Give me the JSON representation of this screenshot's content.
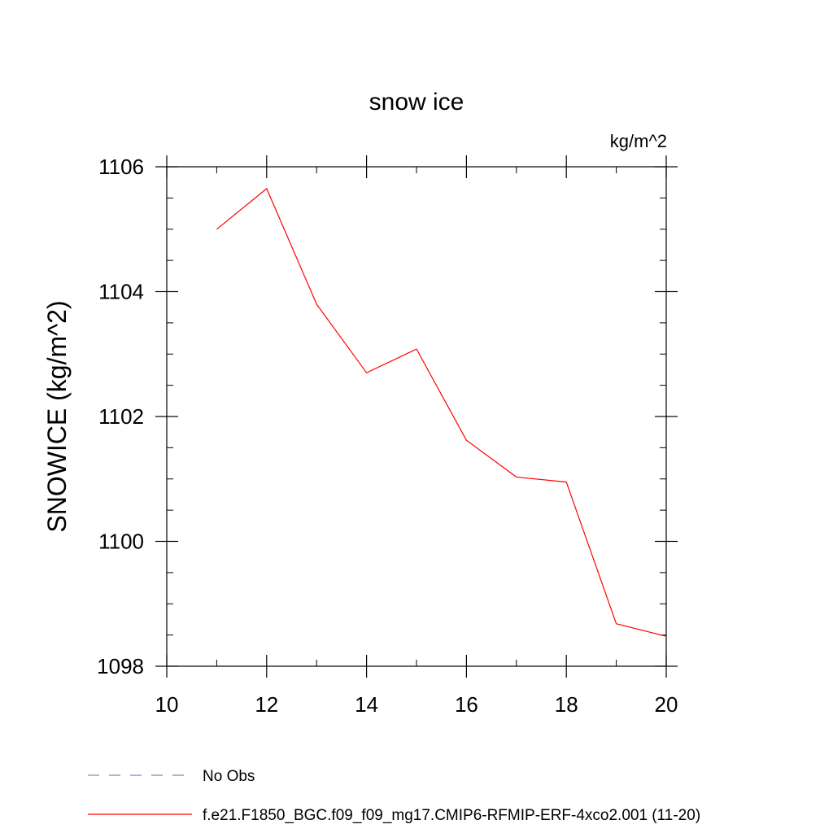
{
  "chart_data": {
    "type": "line",
    "title": "snow ice",
    "units_label": "kg/m^2",
    "ylabel": "SNOWICE  (kg/m^2)",
    "xlabel": "",
    "xlim": [
      10,
      20
    ],
    "ylim": [
      1098,
      1106
    ],
    "x_ticks": [
      10,
      12,
      14,
      16,
      18,
      20
    ],
    "y_ticks": [
      1098,
      1100,
      1102,
      1104,
      1106
    ],
    "grid": false,
    "legend_position": "bottom",
    "series": [
      {
        "name": "f.e21.F1850_BGC.f09_f09_mg17.CMIP6-RFMIP-ERF-4xco2.001 (11-20)",
        "color": "#ff0000",
        "style": "solid",
        "x": [
          11,
          12,
          13,
          14,
          15,
          16,
          17,
          18,
          19,
          20
        ],
        "y": [
          1105.0,
          1105.65,
          1103.8,
          1102.7,
          1103.08,
          1101.62,
          1101.03,
          1100.95,
          1098.68,
          1098.48
        ]
      }
    ],
    "legend": [
      {
        "label": "No Obs",
        "color": "#8a80c0",
        "style": "dashed"
      },
      {
        "label": "f.e21.F1850_BGC.f09_f09_mg17.CMIP6-RFMIP-ERF-4xco2.001 (11-20)",
        "color": "#ff0000",
        "style": "solid"
      }
    ]
  }
}
